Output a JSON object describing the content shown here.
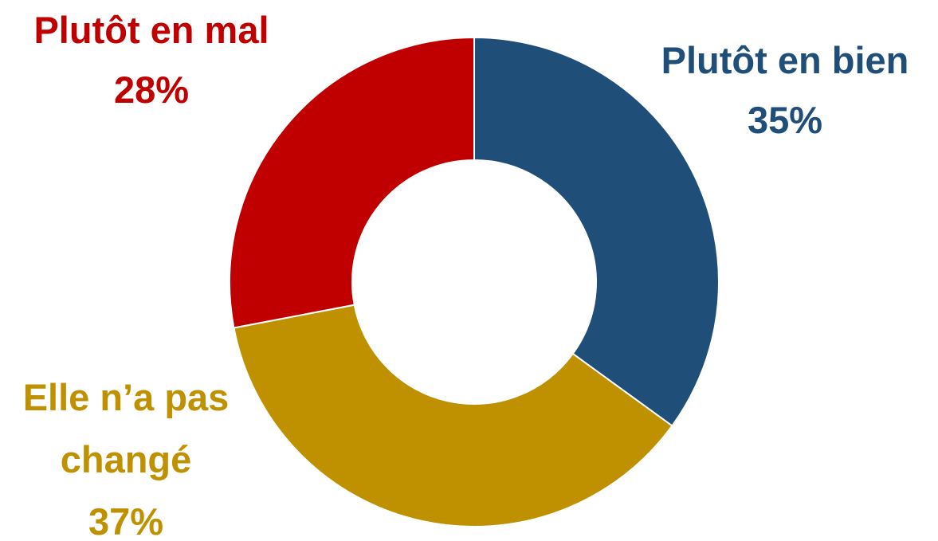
{
  "chart_data": {
    "type": "donut",
    "categories": [
      "Plutôt en bien",
      "Elle n’a pas changé",
      "Plutôt en mal"
    ],
    "values": [
      35,
      37,
      28
    ],
    "value_labels": [
      "35%",
      "37%",
      "28%"
    ],
    "colors": [
      "#1f4e79",
      "#bf9000",
      "#c00000"
    ]
  }
}
